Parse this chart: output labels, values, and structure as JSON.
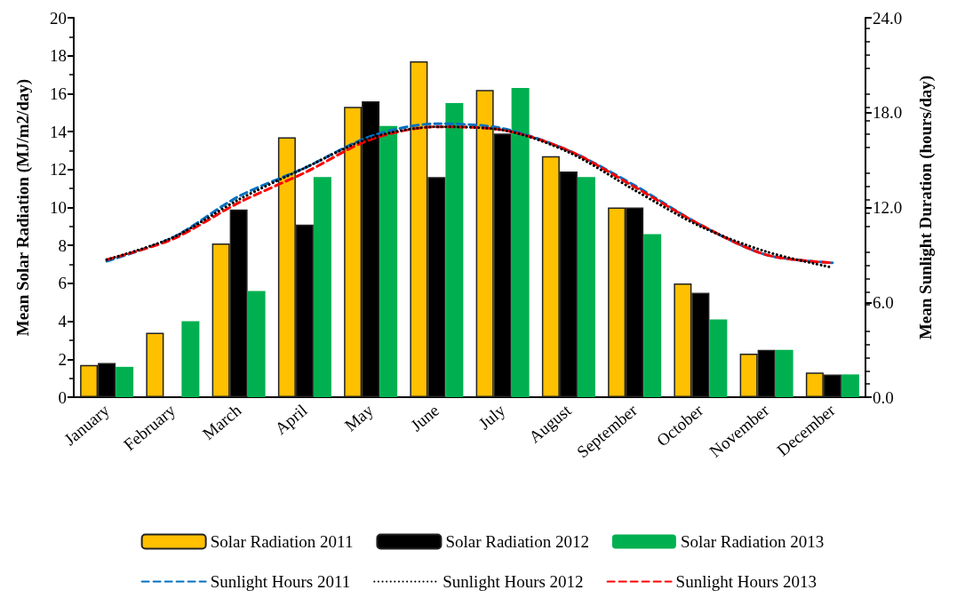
{
  "chart_data": {
    "type": "bar",
    "categories": [
      "January",
      "February",
      "March",
      "April",
      "May",
      "June",
      "July",
      "August",
      "September",
      "October",
      "November",
      "December"
    ],
    "ylabel": "Mean Solar Radiation (MJ/m2/day)",
    "y2label": "Mean Sunlight Duration (hours/day)",
    "ylim": [
      0,
      20
    ],
    "yticks": [
      0,
      2,
      4,
      6,
      8,
      10,
      12,
      14,
      16,
      18,
      20
    ],
    "y2lim": [
      0,
      24
    ],
    "y2ticks": [
      {
        "value": 0,
        "label": "0.0"
      },
      {
        "value": 6,
        "label": "6.0"
      },
      {
        "value": 12,
        "label": "12.0"
      },
      {
        "value": 18,
        "label": "18.0"
      },
      {
        "value": 24,
        "label": "24.0"
      }
    ],
    "grid": false,
    "legend": "bottom",
    "marker": "none",
    "series": [
      {
        "name": "Solar Radiation 2011",
        "color": "#ffc000",
        "values": [
          1.7,
          3.4,
          8.1,
          13.7,
          15.3,
          17.7,
          16.2,
          12.7,
          10.0,
          6.0,
          2.3,
          1.3
        ]
      },
      {
        "name": "Solar Radiation 2012",
        "color": "#000000",
        "values": [
          1.8,
          null,
          9.9,
          9.1,
          15.6,
          11.6,
          13.9,
          11.9,
          10.0,
          5.5,
          2.5,
          1.2
        ]
      },
      {
        "name": "Solar Radiation 2013",
        "color": "#00b050",
        "values": [
          1.6,
          4.0,
          5.6,
          11.6,
          14.3,
          15.5,
          16.3,
          11.6,
          8.6,
          4.1,
          2.5,
          1.2
        ]
      },
      {
        "name": "Sunlight Hours 2011",
        "type": "line",
        "axis": "y2",
        "line_style": "dashed",
        "color": "#0070c0",
        "values": [
          8.6,
          10.1,
          12.7,
          14.5,
          16.5,
          17.3,
          17.0,
          15.6,
          13.4,
          10.9,
          9.0,
          8.5
        ]
      },
      {
        "name": "Sunlight Hours 2012",
        "type": "line",
        "axis": "y2",
        "line_style": "dotted",
        "color": "#000000",
        "values": [
          8.7,
          10.1,
          12.5,
          14.5,
          16.4,
          17.1,
          16.9,
          15.5,
          13.1,
          10.8,
          9.2,
          8.2
        ]
      },
      {
        "name": "Sunlight Hours 2013",
        "type": "line",
        "axis": "y2",
        "line_style": "dashed",
        "color": "#ff0000",
        "values": [
          8.7,
          10.0,
          12.3,
          14.2,
          16.3,
          17.1,
          16.9,
          15.6,
          13.3,
          10.9,
          9.0,
          8.5
        ]
      }
    ]
  }
}
